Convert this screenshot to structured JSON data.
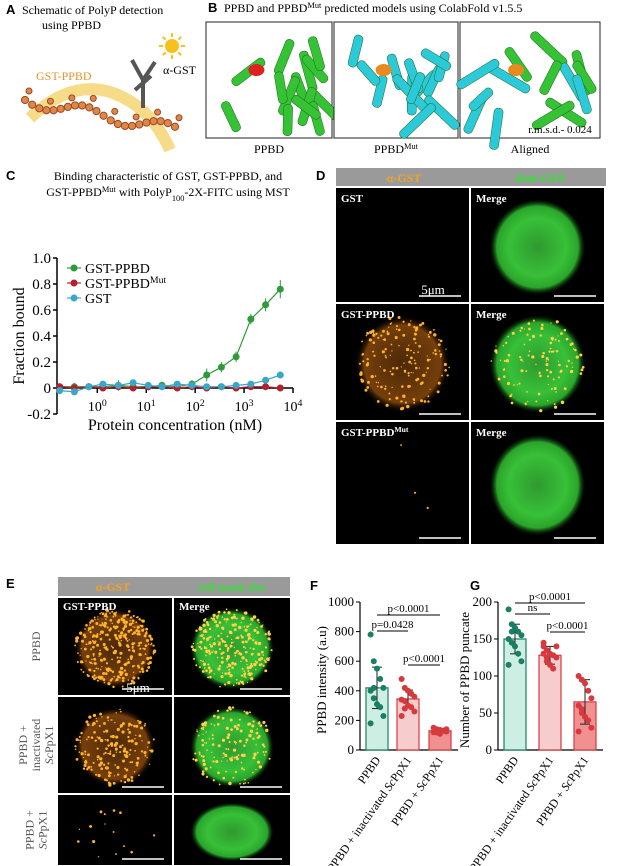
{
  "figure": {
    "A": {
      "panel": "A",
      "title": [
        "Schematic of PolyP detection",
        "using PPBD"
      ],
      "labels": [
        "GST-PPBD",
        "α-GST"
      ]
    },
    "B": {
      "panel": "B",
      "title": [
        "PPBD and PPBD",
        {
          "sup": "Mut"
        },
        " predicted models using ColabFold v1.5.5"
      ],
      "models": [
        [
          "PPBD"
        ],
        [
          "PPBD",
          {
            "sup": "Mut"
          }
        ],
        [
          "Aligned"
        ]
      ],
      "rmsd": "r.m.s.d.- 0.024"
    },
    "D": {
      "panel": "D",
      "header": [
        "α-GST",
        [
          {
            "i": "Hmt"
          },
          "-GFP"
        ]
      ],
      "rows": [
        [
          [
            "GST"
          ],
          [
            "Merge"
          ]
        ],
        [
          [
            "GST-PPBD"
          ],
          [
            "Merge"
          ]
        ],
        [
          [
            "GST-PPBD",
            {
              "sup": "Mut"
            }
          ],
          [
            "Merge"
          ]
        ]
      ],
      "scale": "5μm"
    },
    "E": {
      "panel": "E",
      "header": [
        "α-GST",
        "cell mask dye"
      ],
      "columns": [
        "GST-PPBD",
        "Merge"
      ],
      "rows": [
        [
          "PPBD"
        ],
        [
          "PPBD +",
          "inactivated",
          [
            {
              "i": "Sc"
            },
            "PpX1"
          ]
        ],
        [
          "PPBD +",
          [
            {
              "i": "Sc"
            },
            "PpX1"
          ]
        ]
      ],
      "scale": "5μm"
    }
  },
  "chart_data": [
    {
      "type": "line",
      "panel": "C",
      "title": [
        [
          "Binding characteristic of GST, GST-PPBD, and"
        ],
        [
          "GST-PPBD",
          {
            "sup": "Mut"
          },
          " with PolyP",
          {
            "sub": "100"
          },
          "-2X-FITC  using MST"
        ]
      ],
      "x_label": "Protein concentration (nM)",
      "y_label": "Fraction bound",
      "log_x": true,
      "legend": "upper left",
      "x": [
        0.17,
        0.34,
        0.67,
        1.3,
        2.7,
        5.4,
        11,
        21,
        43,
        86,
        172,
        344,
        687,
        1375,
        2750,
        5500
      ],
      "series": [
        {
          "name": "GST-PPBD",
          "color": "#2e9a3a",
          "values": [
            0.01,
            0.01,
            0.01,
            0.01,
            0.02,
            0.01,
            0.01,
            0.02,
            0.01,
            0.03,
            0.1,
            0.16,
            0.24,
            0.53,
            0.64,
            0.76
          ],
          "errors": [
            0.02,
            0.03,
            0.02,
            0.03,
            0.04,
            0.03,
            0.02,
            0.03,
            0.02,
            0.03,
            0.05,
            0.04,
            0.04,
            0.04,
            0.05,
            0.07
          ]
        },
        {
          "name": [
            "GST-PPBD",
            {
              "sup": "Mut"
            }
          ],
          "color": "#b3202e",
          "values": [
            0.01,
            0,
            0.01,
            0,
            0.01,
            0,
            0.01,
            0.01,
            0,
            0.01,
            0,
            0.01,
            0,
            0.01,
            0.01,
            0
          ]
        },
        {
          "name": "GST",
          "color": "#3aa7c8",
          "values": [
            -0.02,
            -0.03,
            0.01,
            0.03,
            0.02,
            0.04,
            0.02,
            0.01,
            0.03,
            0.02,
            0.01,
            0.01,
            0.02,
            0.03,
            0.06,
            0.1
          ]
        }
      ],
      "xlim": [
        0.15,
        10000
      ],
      "xticks": [
        {
          "value": 1,
          "label": [
            "10",
            {
              "sup": "0"
            }
          ]
        },
        {
          "value": 10,
          "label": [
            "10",
            {
              "sup": "1"
            }
          ]
        },
        {
          "value": 100,
          "label": [
            "10",
            {
              "sup": "2"
            }
          ]
        },
        {
          "value": 1000,
          "label": [
            "10",
            {
              "sup": "3"
            }
          ]
        },
        {
          "value": 10000,
          "label": [
            "10",
            {
              "sup": "4"
            }
          ]
        }
      ],
      "ylim": [
        -0.2,
        1.0
      ],
      "yticks": [
        -0.2,
        0,
        0.2,
        0.4,
        0.6,
        0.8,
        {
          "value": 1.0,
          "label": "1.0"
        }
      ]
    },
    {
      "type": "bar",
      "panel": "F",
      "y_label": "PPBD intensity (a.u)",
      "categories": [
        "PPBD",
        [
          "PPBD + inactivated ",
          {
            "i": "Sc"
          },
          "PpX1"
        ],
        [
          "PPBD + ",
          {
            "i": "Sc"
          },
          "PpX1"
        ]
      ],
      "values": [
        420,
        345,
        130
      ],
      "errors": [
        140,
        60,
        15
      ],
      "points": [
        [
          780,
          600,
          550,
          480,
          420,
          400,
          350,
          310,
          290,
          230,
          180,
          420
        ],
        [
          480,
          420,
          400,
          380,
          360,
          340,
          330,
          300,
          290,
          260,
          230,
          280
        ],
        [
          150,
          140,
          135,
          130,
          125,
          120,
          118,
          110,
          130,
          140
        ]
      ],
      "colors": [
        "#1a7f64",
        "#d63a3f",
        "#d63a3f"
      ],
      "fills": [
        "#cdeee3",
        "#f7cccc",
        "#f09090"
      ],
      "ylim": [
        0,
        1000
      ],
      "yticks": [
        0,
        200,
        400,
        600,
        800,
        1000
      ],
      "comparisons": [
        "p=0.0428",
        "p<0.0001",
        "p<0.0001"
      ]
    },
    {
      "type": "bar",
      "panel": "G",
      "y_label": "Number of PPBD puncate",
      "categories": [
        "PPBD",
        [
          "PPBD + inactivated ",
          {
            "i": "Sc"
          },
          "PpX1"
        ],
        [
          "PPBD + ",
          {
            "i": "Sc"
          },
          "PpX1"
        ]
      ],
      "values": [
        150,
        128,
        65
      ],
      "errors": [
        20,
        12,
        30
      ],
      "points": [
        [
          190,
          170,
          165,
          160,
          155,
          150,
          145,
          140,
          130,
          120,
          115,
          160
        ],
        [
          140,
          135,
          130,
          128,
          125,
          130,
          120,
          115,
          110,
          140,
          145,
          125
        ],
        [
          100,
          95,
          90,
          80,
          70,
          60,
          55,
          45,
          40,
          30,
          25,
          50
        ]
      ],
      "colors": [
        "#1a7f64",
        "#d63a3f",
        "#d63a3f"
      ],
      "fills": [
        "#cdeee3",
        "#f7cccc",
        "#f09090"
      ],
      "ylim": [
        0,
        200
      ],
      "yticks": [
        0,
        50,
        100,
        150,
        200
      ],
      "comparisons": [
        "ns",
        "p<0.0001",
        "p<0.0001"
      ]
    }
  ]
}
